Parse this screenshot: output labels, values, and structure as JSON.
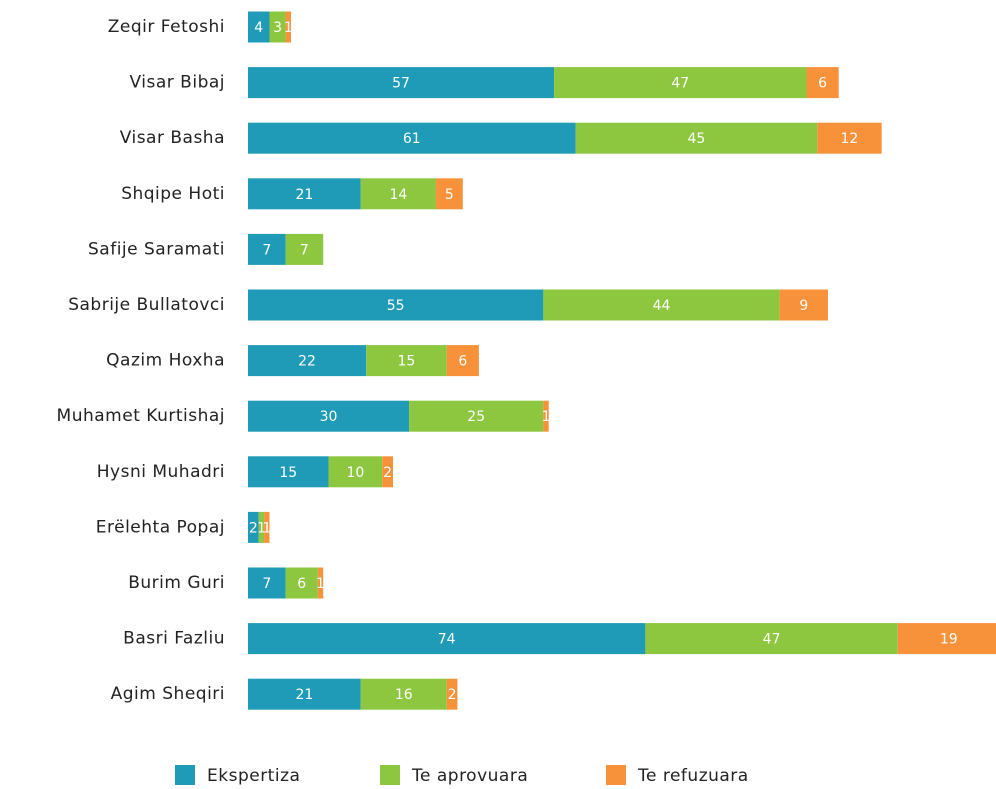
{
  "chart_data": {
    "type": "stacked-bar-horizontal",
    "categories": [
      "Zeqir Fetoshi",
      "Visar Bibaj",
      "Visar Basha",
      "Shqipe Hoti",
      "Safije Saramati",
      "Sabrije Bullatovci",
      "Qazim Hoxha",
      "Muhamet Kurtishaj",
      "Hysni Muhadri",
      "Erëlehta Popaj",
      "Burim Guri",
      "Basri Fazliu",
      "Agim Sheqiri"
    ],
    "series": [
      {
        "name": "Ekspertiza",
        "color": "#1f9bb8",
        "values": [
          4,
          57,
          61,
          21,
          7,
          55,
          22,
          30,
          15,
          2,
          7,
          74,
          21
        ]
      },
      {
        "name": "Te aprovuara",
        "color": "#8dc63f",
        "values": [
          3,
          47,
          45,
          14,
          7,
          44,
          15,
          25,
          10,
          1,
          6,
          47,
          16
        ]
      },
      {
        "name": "Te refuzuara",
        "color": "#f7923a",
        "values": [
          1,
          6,
          12,
          5,
          null,
          9,
          6,
          1,
          2,
          1,
          1,
          19,
          2
        ]
      }
    ],
    "legend": "bottom"
  }
}
